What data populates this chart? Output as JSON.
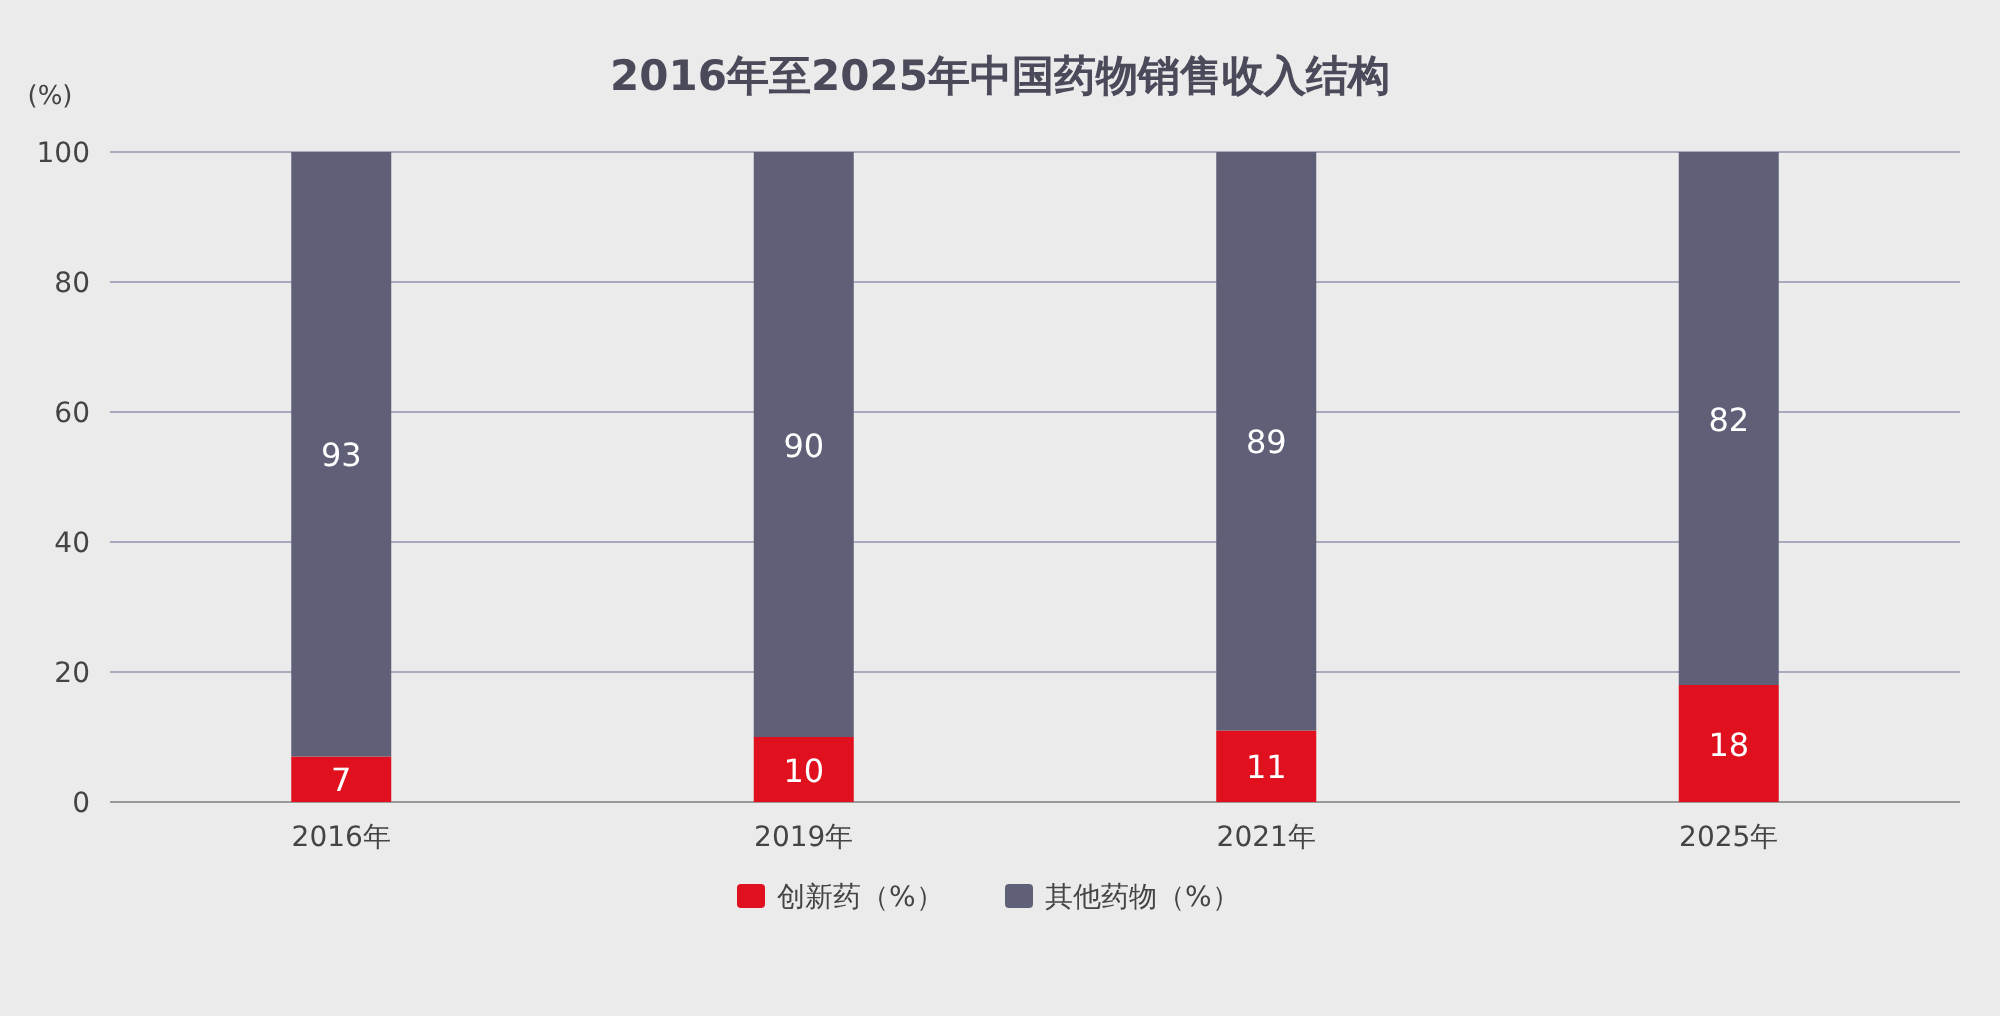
{
  "chart_data": {
    "type": "bar",
    "title": "2016年至2025年中国药物销售收入结构",
    "ylabel": "(%)",
    "categories": [
      "2016年",
      "2019年",
      "2021年",
      "2025年"
    ],
    "series": [
      {
        "name": "创新药（%）",
        "color": "#e0101e",
        "values": [
          7,
          10,
          11,
          18
        ]
      },
      {
        "name": "其他药物（%）",
        "color": "#5f6078",
        "values": [
          93,
          90,
          89,
          82
        ]
      }
    ],
    "stacked": true,
    "data_labels": true,
    "legend": "bottom",
    "grid": "y",
    "ylim": [
      0,
      100
    ],
    "yticks": [
      0,
      20,
      40,
      60,
      80,
      100
    ]
  }
}
